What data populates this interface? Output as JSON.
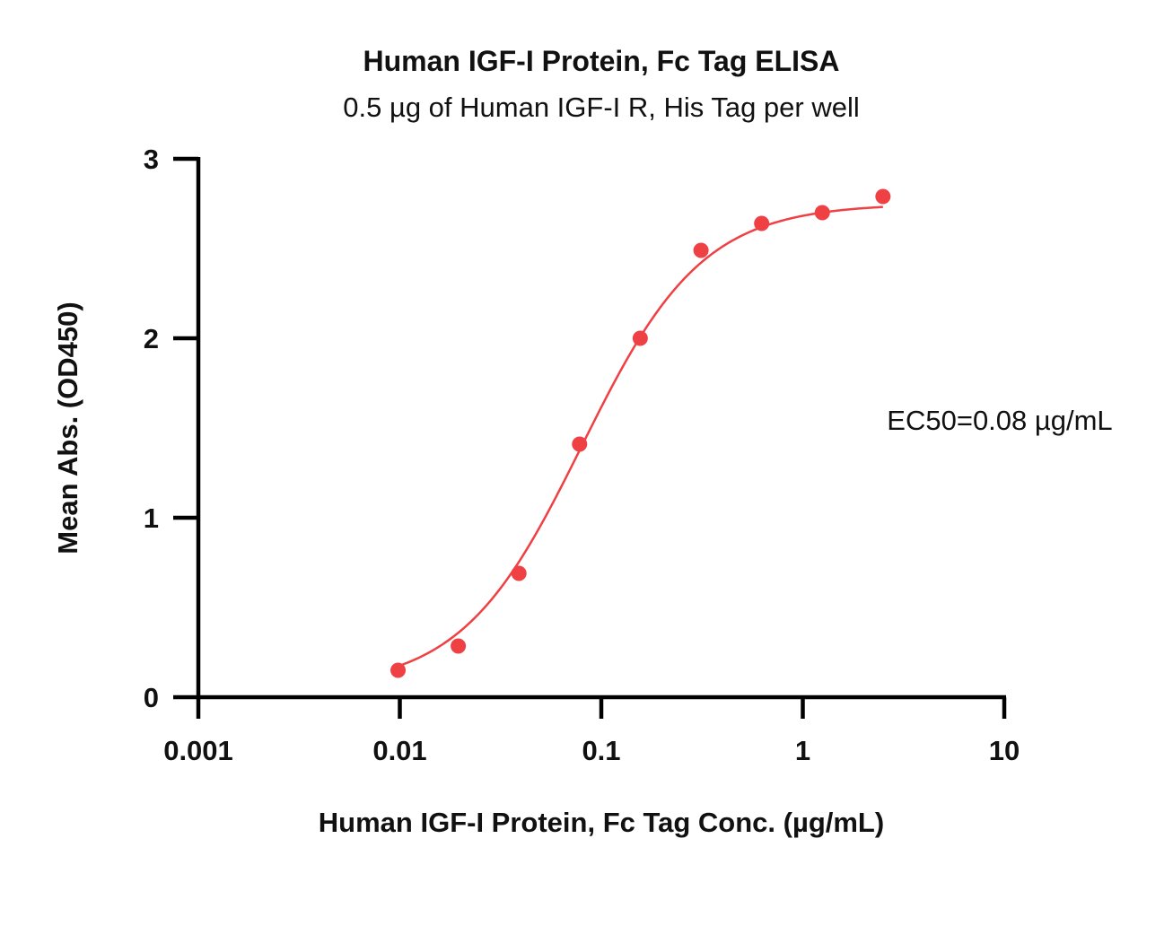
{
  "chart_data": {
    "type": "scatter",
    "title": "Human IGF-I Protein, Fc Tag ELISA",
    "subtitle": "0.5 µg of Human IGF-I R, His Tag per well",
    "xlabel": "Human IGF-I Protein, Fc Tag Conc. (µg/mL)",
    "ylabel": "Mean Abs. (OD450)",
    "x_scale": "log",
    "xlim": [
      0.001,
      10
    ],
    "ylim": [
      0,
      3
    ],
    "x_ticks": [
      {
        "value": 0.001,
        "label": "0.001"
      },
      {
        "value": 0.01,
        "label": "0.01"
      },
      {
        "value": 0.1,
        "label": "0.1"
      },
      {
        "value": 1,
        "label": "1"
      },
      {
        "value": 10,
        "label": "10"
      }
    ],
    "y_ticks": [
      {
        "value": 0,
        "label": "0"
      },
      {
        "value": 1,
        "label": "1"
      },
      {
        "value": 2,
        "label": "2"
      },
      {
        "value": 3,
        "label": "3"
      }
    ],
    "series": [
      {
        "color": "#ef4044",
        "x": [
          0.0098,
          0.0195,
          0.039,
          0.078,
          0.156,
          0.3125,
          0.625,
          1.25,
          2.5
        ],
        "values": [
          0.15,
          0.285,
          0.69,
          1.41,
          2.0,
          2.49,
          2.64,
          2.7,
          2.79
        ]
      }
    ],
    "fit": {
      "model": "4PL",
      "bottom": 0.05,
      "top": 2.75,
      "ec50": 0.08,
      "hill": 1.45,
      "color": "#ef4044"
    },
    "annotation": "EC50=0.08 µg/mL",
    "grid": false,
    "legend": "none"
  }
}
